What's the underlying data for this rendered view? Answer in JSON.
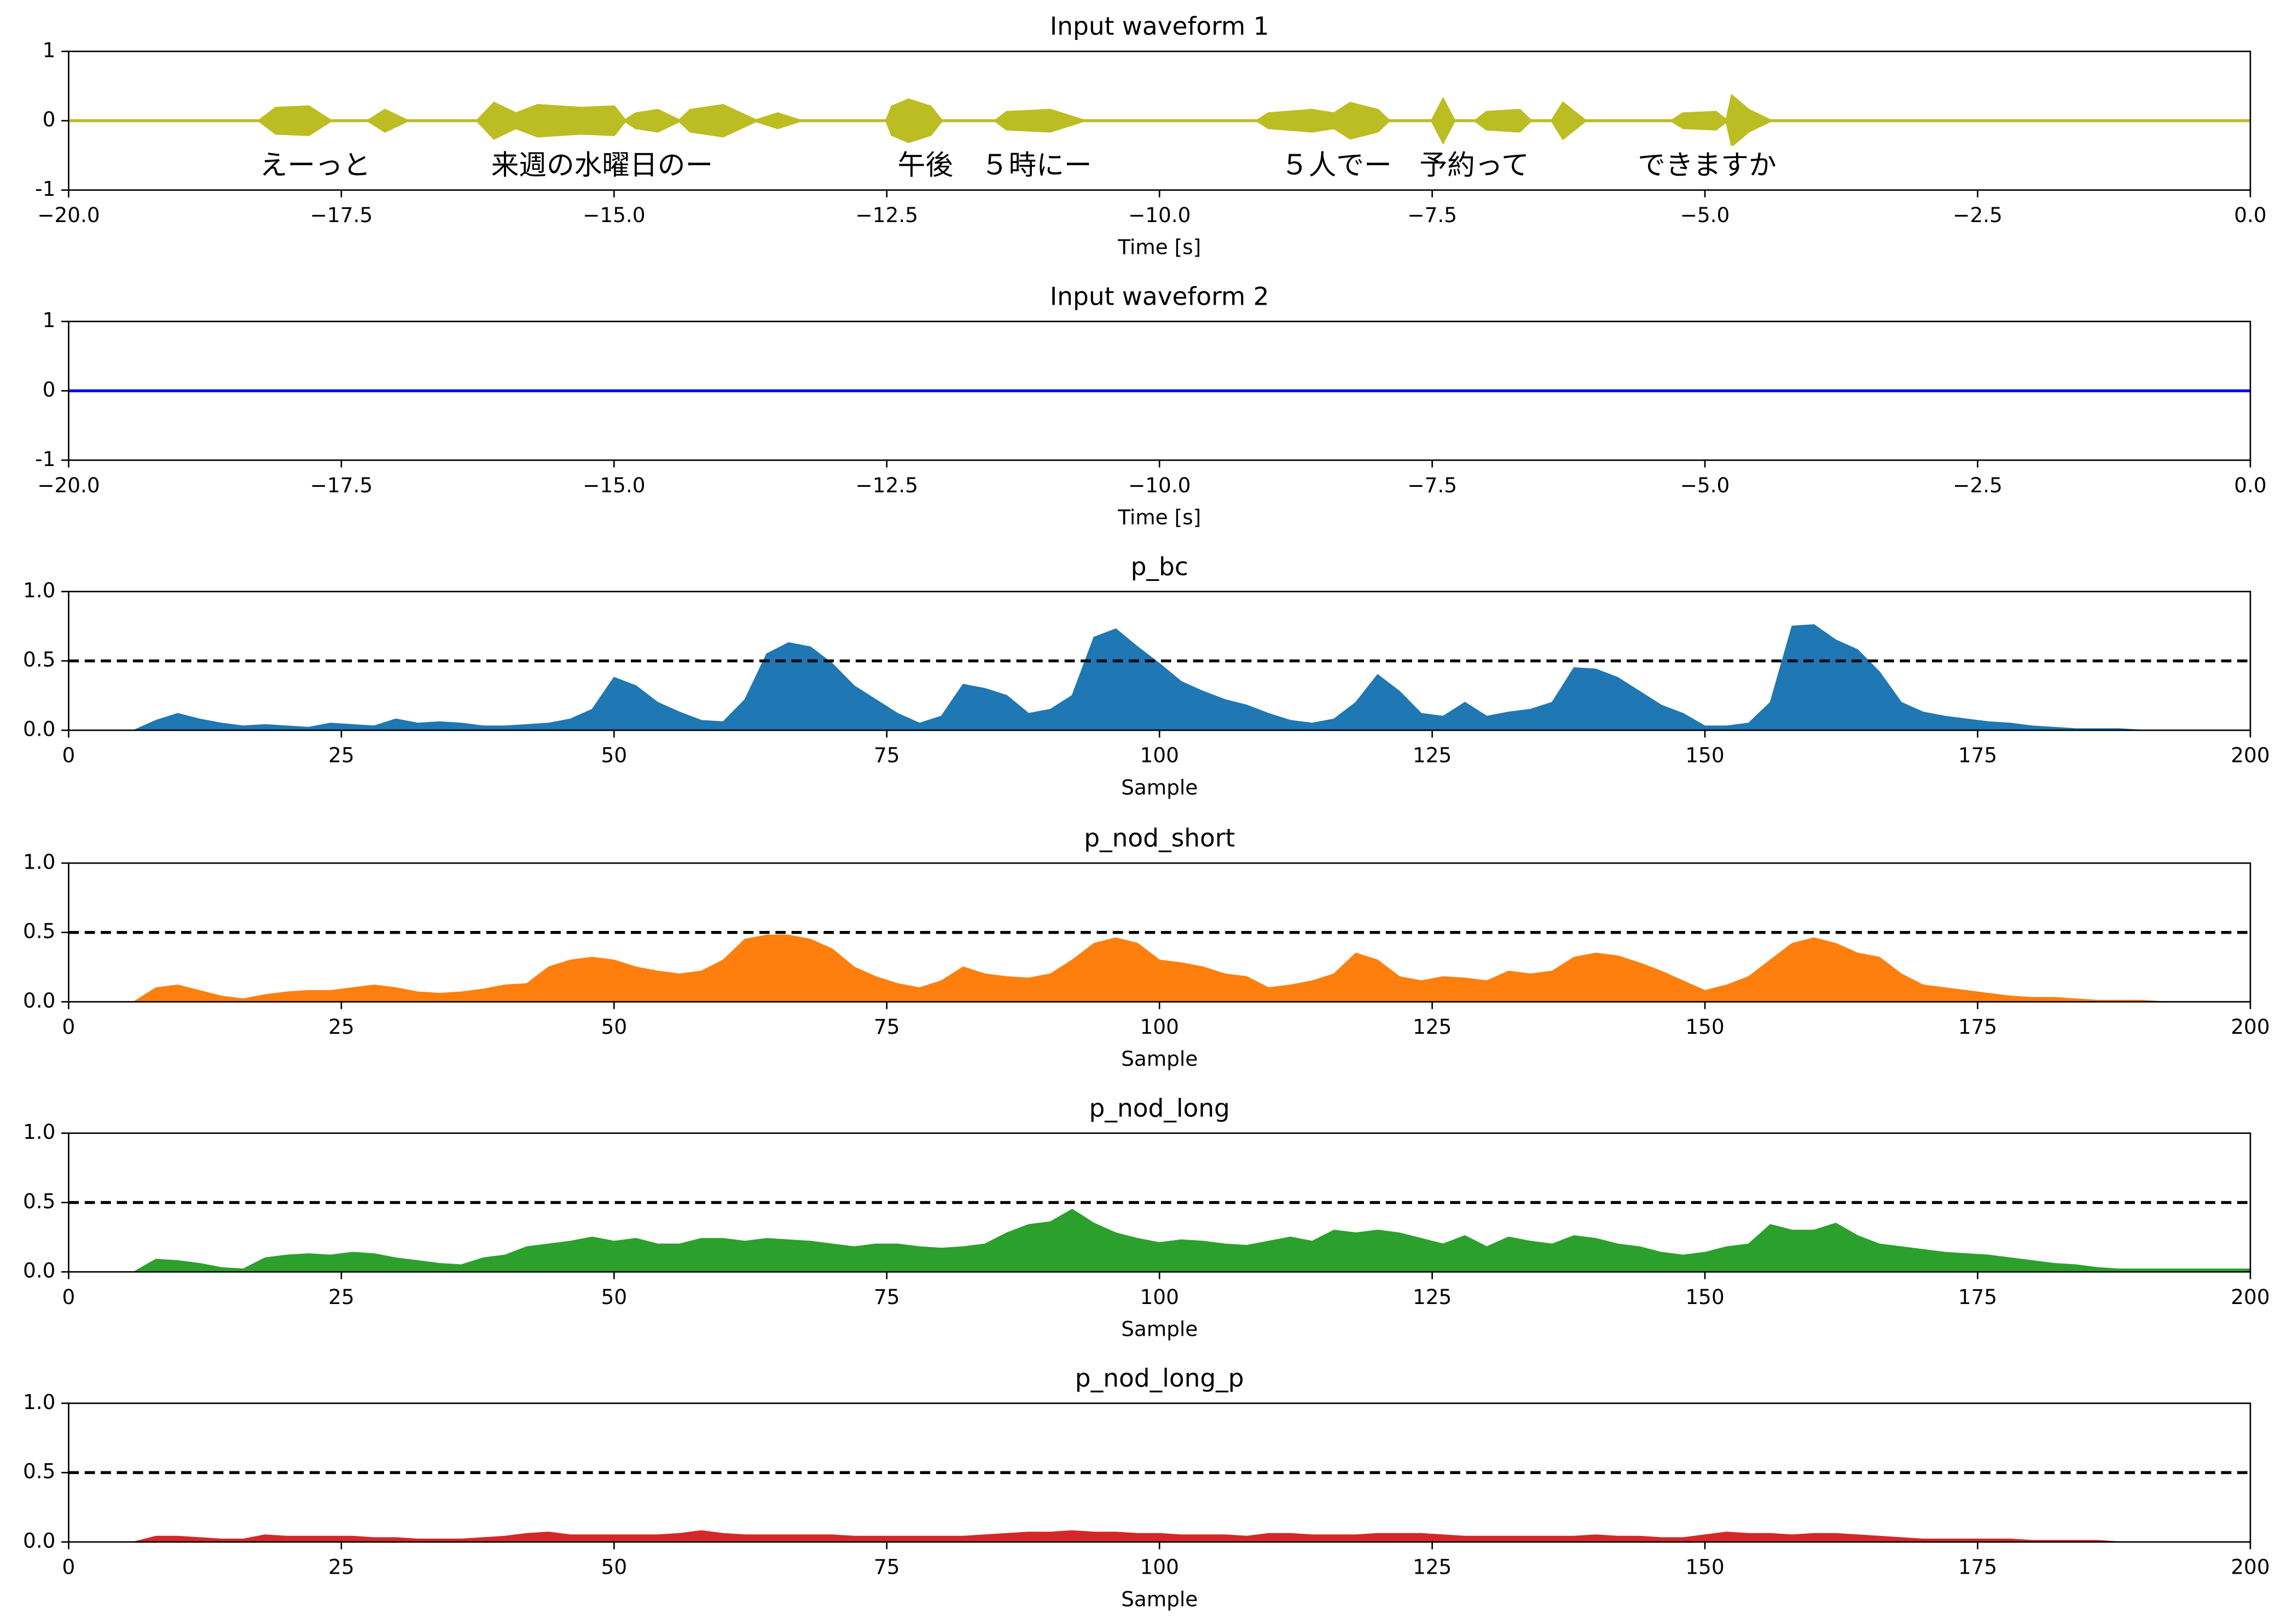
{
  "chart_data": [
    {
      "type": "waveform",
      "title": "Input waveform 1",
      "xlabel": "Time [s]",
      "color": "#bcbd22",
      "x": [
        -20,
        -18.25,
        -18.1,
        -17.8,
        -17.6,
        -17.25,
        -17.1,
        -16.9,
        -16.25,
        -16.1,
        -15.9,
        -15.7,
        -15.3,
        -15.0,
        -14.9,
        -14.8,
        -14.6,
        -14.4,
        -14.3,
        -14.0,
        -13.7,
        -13.5,
        -13.3,
        -12.5,
        -12.45,
        -12.3,
        -12.1,
        -12.0,
        -11.5,
        -11.4,
        -11.0,
        -10.7,
        -9.1,
        -9.0,
        -8.6,
        -8.4,
        -8.25,
        -8.0,
        -7.9,
        -7.5,
        -7.4,
        -7.3,
        -7.1,
        -7.0,
        -6.7,
        -6.6,
        -6.4,
        -6.3,
        -6.1,
        -5.3,
        -5.2,
        -4.9,
        -4.8,
        -4.75,
        -4.6,
        -4.4,
        0
      ],
      "values": [
        0,
        0,
        0.18,
        0.2,
        0,
        0,
        0.15,
        0,
        0,
        0.25,
        0.1,
        0.22,
        0.18,
        0.2,
        0,
        0.1,
        0.15,
        0,
        0.15,
        0.22,
        0,
        0.1,
        0,
        0,
        0.2,
        0.3,
        0.2,
        0,
        0,
        0.12,
        0.15,
        0,
        0,
        0.1,
        0.15,
        0.1,
        0.25,
        0.15,
        0,
        0,
        0.3,
        0,
        0,
        0.12,
        0.15,
        0,
        0,
        0.25,
        0,
        0,
        0.1,
        0.12,
        0,
        0.35,
        0.15,
        0,
        0
      ],
      "annotations": [
        {
          "text": "えーっと",
          "x": -17.74
        },
        {
          "text": "来週の水曜日のー",
          "x": -15.11
        },
        {
          "text": "午後　５時にー",
          "x": -11.51
        },
        {
          "text": "５人でー　予約って",
          "x": -7.75
        },
        {
          "text": "できますか",
          "x": -4.98
        }
      ],
      "xlim": [
        -20,
        0
      ],
      "ylim": [
        -1,
        1
      ],
      "yticks": [
        -1,
        0,
        1
      ],
      "xticks": [
        {
          "value": -20,
          "label": "−20.0"
        },
        {
          "value": -17.5,
          "label": "−17.5"
        },
        {
          "value": -15,
          "label": "−15.0"
        },
        {
          "value": -12.5,
          "label": "−12.5"
        },
        {
          "value": -10,
          "label": "−10.0"
        },
        {
          "value": -7.5,
          "label": "−7.5"
        },
        {
          "value": -5,
          "label": "−5.0"
        },
        {
          "value": -2.5,
          "label": "−2.5"
        },
        {
          "value": 0,
          "label": "0.0"
        }
      ]
    },
    {
      "type": "line",
      "title": "Input waveform 2",
      "xlabel": "Time [s]",
      "color": "#0000ff",
      "x": [
        -20,
        0
      ],
      "values": [
        0,
        0
      ],
      "xlim": [
        -20,
        0
      ],
      "ylim": [
        -1,
        1
      ],
      "yticks": [
        -1,
        0,
        1
      ],
      "xticks": [
        {
          "value": -20,
          "label": "−20.0"
        },
        {
          "value": -17.5,
          "label": "−17.5"
        },
        {
          "value": -15,
          "label": "−15.0"
        },
        {
          "value": -12.5,
          "label": "−12.5"
        },
        {
          "value": -10,
          "label": "−10.0"
        },
        {
          "value": -7.5,
          "label": "−7.5"
        },
        {
          "value": -5,
          "label": "−5.0"
        },
        {
          "value": -2.5,
          "label": "−2.5"
        },
        {
          "value": 0,
          "label": "0.0"
        }
      ]
    },
    {
      "type": "area",
      "title": "p_bc",
      "xlabel": "Sample",
      "color": "#1f77b4",
      "threshold": 0.5,
      "x": [
        0,
        2,
        4,
        6,
        8,
        10,
        12,
        14,
        16,
        18,
        20,
        22,
        24,
        26,
        28,
        30,
        32,
        34,
        36,
        38,
        40,
        42,
        44,
        46,
        48,
        50,
        52,
        54,
        56,
        58,
        60,
        62,
        64,
        66,
        68,
        70,
        72,
        74,
        76,
        78,
        80,
        82,
        84,
        86,
        88,
        90,
        92,
        94,
        96,
        98,
        100,
        102,
        104,
        106,
        108,
        110,
        112,
        114,
        116,
        118,
        120,
        122,
        124,
        126,
        128,
        130,
        132,
        134,
        136,
        138,
        140,
        142,
        144,
        146,
        148,
        150,
        152,
        154,
        156,
        158,
        160,
        162,
        164,
        166,
        168,
        170,
        172,
        174,
        176,
        178,
        180,
        182,
        184,
        186,
        188,
        190,
        192,
        194,
        196,
        198,
        200
      ],
      "values": [
        0,
        0,
        0,
        0,
        0.07,
        0.12,
        0.08,
        0.05,
        0.03,
        0.04,
        0.03,
        0.02,
        0.05,
        0.04,
        0.03,
        0.08,
        0.05,
        0.06,
        0.05,
        0.03,
        0.03,
        0.04,
        0.05,
        0.08,
        0.15,
        0.38,
        0.32,
        0.2,
        0.13,
        0.07,
        0.06,
        0.22,
        0.55,
        0.63,
        0.6,
        0.48,
        0.32,
        0.22,
        0.12,
        0.05,
        0.1,
        0.33,
        0.3,
        0.25,
        0.12,
        0.15,
        0.25,
        0.67,
        0.73,
        0.6,
        0.48,
        0.35,
        0.28,
        0.22,
        0.18,
        0.12,
        0.07,
        0.05,
        0.08,
        0.2,
        0.4,
        0.28,
        0.12,
        0.1,
        0.2,
        0.1,
        0.13,
        0.15,
        0.2,
        0.45,
        0.44,
        0.38,
        0.28,
        0.18,
        0.12,
        0.03,
        0.03,
        0.05,
        0.2,
        0.75,
        0.76,
        0.65,
        0.58,
        0.42,
        0.2,
        0.13,
        0.1,
        0.08,
        0.06,
        0.05,
        0.03,
        0.02,
        0.01,
        0.01,
        0.01,
        0,
        0,
        0,
        0,
        0,
        0
      ],
      "xlim": [
        0,
        200
      ],
      "ylim": [
        0,
        1
      ],
      "xticks": [
        0,
        25,
        50,
        75,
        100,
        125,
        150,
        175,
        200
      ],
      "yticks": [
        {
          "value": 0,
          "label": "0.0"
        },
        {
          "value": 0.5,
          "label": "0.5"
        },
        {
          "value": 1,
          "label": "1.0"
        }
      ]
    },
    {
      "type": "area",
      "title": "p_nod_short",
      "xlabel": "Sample",
      "color": "#ff7f0e",
      "threshold": 0.5,
      "x": [
        0,
        2,
        4,
        6,
        8,
        10,
        12,
        14,
        16,
        18,
        20,
        22,
        24,
        26,
        28,
        30,
        32,
        34,
        36,
        38,
        40,
        42,
        44,
        46,
        48,
        50,
        52,
        54,
        56,
        58,
        60,
        62,
        64,
        66,
        68,
        70,
        72,
        74,
        76,
        78,
        80,
        82,
        84,
        86,
        88,
        90,
        92,
        94,
        96,
        98,
        100,
        102,
        104,
        106,
        108,
        110,
        112,
        114,
        116,
        118,
        120,
        122,
        124,
        126,
        128,
        130,
        132,
        134,
        136,
        138,
        140,
        142,
        144,
        146,
        148,
        150,
        152,
        154,
        156,
        158,
        160,
        162,
        164,
        166,
        168,
        170,
        172,
        174,
        176,
        178,
        180,
        182,
        184,
        186,
        188,
        190,
        192,
        194,
        196,
        198,
        200
      ],
      "values": [
        0,
        0,
        0,
        0,
        0.1,
        0.12,
        0.08,
        0.04,
        0.02,
        0.05,
        0.07,
        0.08,
        0.08,
        0.1,
        0.12,
        0.1,
        0.07,
        0.06,
        0.07,
        0.09,
        0.12,
        0.13,
        0.25,
        0.3,
        0.32,
        0.3,
        0.25,
        0.22,
        0.2,
        0.22,
        0.3,
        0.45,
        0.48,
        0.48,
        0.45,
        0.38,
        0.25,
        0.18,
        0.13,
        0.1,
        0.15,
        0.25,
        0.2,
        0.18,
        0.17,
        0.2,
        0.3,
        0.42,
        0.46,
        0.42,
        0.3,
        0.28,
        0.25,
        0.2,
        0.18,
        0.1,
        0.12,
        0.15,
        0.2,
        0.35,
        0.3,
        0.18,
        0.15,
        0.18,
        0.17,
        0.15,
        0.22,
        0.2,
        0.22,
        0.32,
        0.35,
        0.33,
        0.28,
        0.22,
        0.15,
        0.08,
        0.12,
        0.18,
        0.3,
        0.42,
        0.46,
        0.42,
        0.35,
        0.32,
        0.2,
        0.12,
        0.1,
        0.08,
        0.06,
        0.04,
        0.03,
        0.03,
        0.02,
        0.01,
        0.01,
        0.01,
        0,
        0,
        0,
        0,
        0
      ],
      "xlim": [
        0,
        200
      ],
      "ylim": [
        0,
        1
      ],
      "xticks": [
        0,
        25,
        50,
        75,
        100,
        125,
        150,
        175,
        200
      ],
      "yticks": [
        {
          "value": 0,
          "label": "0.0"
        },
        {
          "value": 0.5,
          "label": "0.5"
        },
        {
          "value": 1,
          "label": "1.0"
        }
      ]
    },
    {
      "type": "area",
      "title": "p_nod_long",
      "xlabel": "Sample",
      "color": "#2ca02c",
      "threshold": 0.5,
      "x": [
        0,
        2,
        4,
        6,
        8,
        10,
        12,
        14,
        16,
        18,
        20,
        22,
        24,
        26,
        28,
        30,
        32,
        34,
        36,
        38,
        40,
        42,
        44,
        46,
        48,
        50,
        52,
        54,
        56,
        58,
        60,
        62,
        64,
        66,
        68,
        70,
        72,
        74,
        76,
        78,
        80,
        82,
        84,
        86,
        88,
        90,
        92,
        94,
        96,
        98,
        100,
        102,
        104,
        106,
        108,
        110,
        112,
        114,
        116,
        118,
        120,
        122,
        124,
        126,
        128,
        130,
        132,
        134,
        136,
        138,
        140,
        142,
        144,
        146,
        148,
        150,
        152,
        154,
        156,
        158,
        160,
        162,
        164,
        166,
        168,
        170,
        172,
        174,
        176,
        178,
        180,
        182,
        184,
        186,
        188,
        190,
        192,
        194,
        196,
        198,
        200
      ],
      "values": [
        0,
        0,
        0,
        0,
        0.09,
        0.08,
        0.06,
        0.03,
        0.02,
        0.1,
        0.12,
        0.13,
        0.12,
        0.14,
        0.13,
        0.1,
        0.08,
        0.06,
        0.05,
        0.1,
        0.12,
        0.18,
        0.2,
        0.22,
        0.25,
        0.22,
        0.24,
        0.2,
        0.2,
        0.24,
        0.24,
        0.22,
        0.24,
        0.23,
        0.22,
        0.2,
        0.18,
        0.2,
        0.2,
        0.18,
        0.17,
        0.18,
        0.2,
        0.28,
        0.34,
        0.36,
        0.45,
        0.35,
        0.28,
        0.24,
        0.21,
        0.23,
        0.22,
        0.2,
        0.19,
        0.22,
        0.25,
        0.22,
        0.3,
        0.28,
        0.3,
        0.28,
        0.24,
        0.2,
        0.26,
        0.18,
        0.25,
        0.22,
        0.2,
        0.26,
        0.24,
        0.2,
        0.18,
        0.14,
        0.12,
        0.14,
        0.18,
        0.2,
        0.34,
        0.3,
        0.3,
        0.35,
        0.26,
        0.2,
        0.18,
        0.16,
        0.14,
        0.13,
        0.12,
        0.1,
        0.08,
        0.06,
        0.05,
        0.03,
        0.02,
        0.02,
        0.02,
        0.02,
        0.02,
        0.02,
        0.02
      ],
      "xlim": [
        0,
        200
      ],
      "ylim": [
        0,
        1
      ],
      "xticks": [
        0,
        25,
        50,
        75,
        100,
        125,
        150,
        175,
        200
      ],
      "yticks": [
        {
          "value": 0,
          "label": "0.0"
        },
        {
          "value": 0.5,
          "label": "0.5"
        },
        {
          "value": 1,
          "label": "1.0"
        }
      ]
    },
    {
      "type": "area",
      "title": "p_nod_long_p",
      "xlabel": "Sample",
      "color": "#d62728",
      "threshold": 0.5,
      "x": [
        0,
        2,
        4,
        6,
        8,
        10,
        12,
        14,
        16,
        18,
        20,
        22,
        24,
        26,
        28,
        30,
        32,
        34,
        36,
        38,
        40,
        42,
        44,
        46,
        48,
        50,
        52,
        54,
        56,
        58,
        60,
        62,
        64,
        66,
        68,
        70,
        72,
        74,
        76,
        78,
        80,
        82,
        84,
        86,
        88,
        90,
        92,
        94,
        96,
        98,
        100,
        102,
        104,
        106,
        108,
        110,
        112,
        114,
        116,
        118,
        120,
        122,
        124,
        126,
        128,
        130,
        132,
        134,
        136,
        138,
        140,
        142,
        144,
        146,
        148,
        150,
        152,
        154,
        156,
        158,
        160,
        162,
        164,
        166,
        168,
        170,
        172,
        174,
        176,
        178,
        180,
        182,
        184,
        186,
        188,
        190,
        192,
        194,
        196,
        198,
        200
      ],
      "values": [
        0,
        0,
        0,
        0,
        0.04,
        0.04,
        0.03,
        0.02,
        0.02,
        0.05,
        0.04,
        0.04,
        0.04,
        0.04,
        0.03,
        0.03,
        0.02,
        0.02,
        0.02,
        0.03,
        0.04,
        0.06,
        0.07,
        0.05,
        0.05,
        0.05,
        0.05,
        0.05,
        0.06,
        0.08,
        0.06,
        0.05,
        0.05,
        0.05,
        0.05,
        0.05,
        0.04,
        0.04,
        0.04,
        0.04,
        0.04,
        0.04,
        0.05,
        0.06,
        0.07,
        0.07,
        0.08,
        0.07,
        0.07,
        0.06,
        0.06,
        0.05,
        0.05,
        0.05,
        0.04,
        0.06,
        0.06,
        0.05,
        0.05,
        0.05,
        0.06,
        0.06,
        0.06,
        0.05,
        0.04,
        0.04,
        0.04,
        0.04,
        0.04,
        0.04,
        0.05,
        0.04,
        0.04,
        0.03,
        0.03,
        0.05,
        0.07,
        0.06,
        0.06,
        0.05,
        0.06,
        0.06,
        0.05,
        0.04,
        0.03,
        0.02,
        0.02,
        0.02,
        0.02,
        0.02,
        0.01,
        0.01,
        0.01,
        0.01,
        0,
        0,
        0,
        0,
        0,
        0,
        0
      ],
      "xlim": [
        0,
        200
      ],
      "ylim": [
        0,
        1
      ],
      "xticks": [
        0,
        25,
        50,
        75,
        100,
        125,
        150,
        175,
        200
      ],
      "yticks": [
        {
          "value": 0,
          "label": "0.0"
        },
        {
          "value": 0.5,
          "label": "0.5"
        },
        {
          "value": 1,
          "label": "1.0"
        }
      ]
    }
  ]
}
